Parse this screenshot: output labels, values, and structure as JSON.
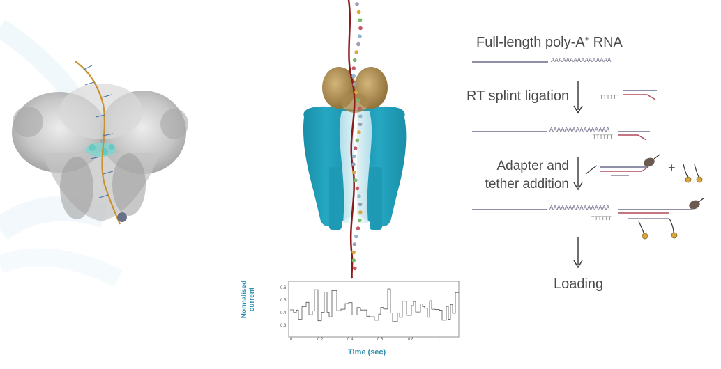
{
  "workflow": {
    "title_main": "Full-length poly-A",
    "title_sup": "+",
    "title_end": " RNA",
    "step_rt": "RT splint ligation",
    "step_adapter_line1": "Adapter and",
    "step_adapter_line2": "tether addition",
    "step_loading": "Loading",
    "poly_a_text": "AAAAAAAAAAAAAAAA",
    "poly_t_text": "TTTTTT",
    "plus_sign": "+"
  },
  "trace": {
    "ylabel_line1": "Normalised",
    "ylabel_line2": "current",
    "xlabel": "Time (sec)",
    "y_ticks": [
      "0.6",
      "0.5",
      "0.4",
      "0.3"
    ],
    "x_ticks": [
      "0",
      "0.2",
      "0.4",
      "0.6",
      "0.8",
      "1"
    ]
  },
  "colors": {
    "text_gray": "#4a4a4a",
    "accent_blue": "#2f8fb0",
    "pore_teal": "#1f9ab5",
    "motor_gold": "#b8965a",
    "strand_red": "#8b1a1a",
    "line_purple": "#6a6a8c",
    "adapter_red": "#b04a5a"
  }
}
